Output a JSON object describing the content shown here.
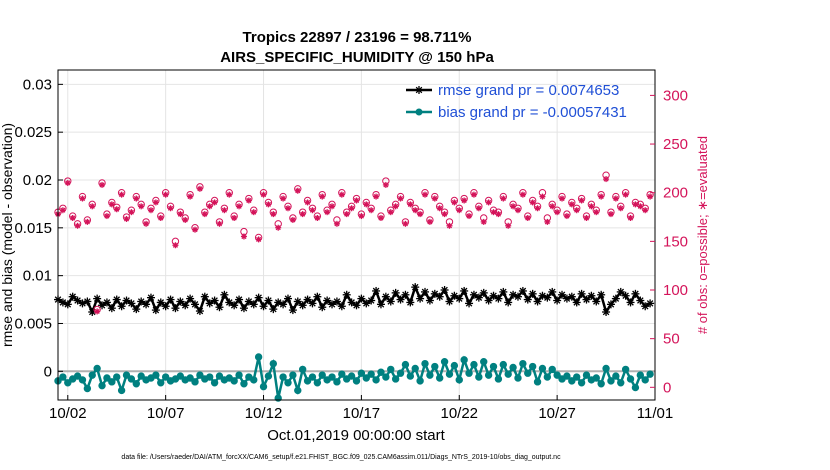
{
  "chart_data": {
    "type": "line",
    "title": "Tropics 22897 / 23196 = 98.711%",
    "subtitle": "AIRS_SPECIFIC_HUMIDITY @ 150 hPa",
    "xlabel": "Oct.01,2019 00:00:00 start",
    "ylabel": "rmse and bias (model - observation)",
    "y2label": "# of obs: o=possible; ∗=evaluated",
    "footer": "data file: /Users/raeder/DAI/ATM_forcXX/CAM6_setup/f.e21.FHIST_BGC.f09_025.CAM6assim.011/Diags_NTrS_2019-10/obs_diag_output.nc",
    "xlim": [
      1.5,
      32.0
    ],
    "ylim": [
      -0.003,
      0.0315
    ],
    "y2lim": [
      -13.04,
      326.1
    ],
    "x_ticks": [
      {
        "v": 2,
        "label": "10/02"
      },
      {
        "v": 7,
        "label": "10/07"
      },
      {
        "v": 12,
        "label": "10/12"
      },
      {
        "v": 17,
        "label": "10/17"
      },
      {
        "v": 22,
        "label": "10/22"
      },
      {
        "v": 27,
        "label": "10/27"
      },
      {
        "v": 32,
        "label": "11/01"
      }
    ],
    "y_ticks": [
      {
        "v": 0,
        "label": "0"
      },
      {
        "v": 0.005,
        "label": "0.005"
      },
      {
        "v": 0.01,
        "label": "0.01"
      },
      {
        "v": 0.015,
        "label": "0.015"
      },
      {
        "v": 0.02,
        "label": "0.02"
      },
      {
        "v": 0.025,
        "label": "0.025"
      },
      {
        "v": 0.03,
        "label": "0.03"
      }
    ],
    "y2_ticks": [
      {
        "v": 0,
        "label": "0"
      },
      {
        "v": 50,
        "label": "50"
      },
      {
        "v": 100,
        "label": "100"
      },
      {
        "v": 150,
        "label": "150"
      },
      {
        "v": 200,
        "label": "200"
      },
      {
        "v": 250,
        "label": "250"
      },
      {
        "v": 300,
        "label": "300"
      }
    ],
    "legend": {
      "position": "top-right"
    },
    "series": [
      {
        "name": "rmse grand pr = 0.0074653",
        "color": "#000000",
        "marker": "star",
        "x": [
          1.5,
          1.75,
          2.0,
          2.25,
          2.5,
          2.75,
          3.0,
          3.25,
          3.5,
          3.75,
          4.0,
          4.25,
          4.5,
          4.75,
          5.0,
          5.25,
          5.5,
          5.75,
          6.0,
          6.25,
          6.5,
          6.75,
          7.0,
          7.25,
          7.5,
          7.75,
          8.0,
          8.25,
          8.5,
          8.75,
          9.0,
          9.25,
          9.5,
          9.75,
          10.0,
          10.25,
          10.5,
          10.75,
          11.0,
          11.25,
          11.5,
          11.75,
          12.0,
          12.25,
          12.5,
          12.75,
          13.0,
          13.25,
          13.5,
          13.75,
          14.0,
          14.25,
          14.5,
          14.75,
          15.0,
          15.25,
          15.5,
          15.75,
          16.0,
          16.25,
          16.5,
          16.75,
          17.0,
          17.25,
          17.5,
          17.75,
          18.0,
          18.25,
          18.5,
          18.75,
          19.0,
          19.25,
          19.5,
          19.75,
          20.0,
          20.25,
          20.5,
          20.75,
          21.0,
          21.25,
          21.5,
          21.75,
          22.0,
          22.25,
          22.5,
          22.75,
          23.0,
          23.25,
          23.5,
          23.75,
          24.0,
          24.25,
          24.5,
          24.75,
          25.0,
          25.25,
          25.5,
          25.75,
          26.0,
          26.25,
          26.5,
          26.75,
          27.0,
          27.25,
          27.5,
          27.75,
          28.0,
          28.25,
          28.5,
          28.75,
          29.0,
          29.25,
          29.5,
          29.75,
          30.0,
          30.25,
          30.5,
          30.75,
          31.0,
          31.25,
          31.5,
          31.75
        ],
        "y": [
          0.0075,
          0.0072,
          0.007,
          0.0078,
          0.0074,
          0.0071,
          0.0073,
          0.0062,
          0.0076,
          0.0069,
          0.0072,
          0.0066,
          0.0075,
          0.0068,
          0.0074,
          0.0071,
          0.0065,
          0.0073,
          0.007,
          0.0077,
          0.0064,
          0.0072,
          0.0068,
          0.0075,
          0.0066,
          0.0073,
          0.0069,
          0.0076,
          0.007,
          0.0063,
          0.0078,
          0.0071,
          0.0074,
          0.0067,
          0.008,
          0.0072,
          0.0069,
          0.0075,
          0.0066,
          0.0073,
          0.007,
          0.0077,
          0.0068,
          0.0074,
          0.0065,
          0.0072,
          0.007,
          0.0076,
          0.0064,
          0.0073,
          0.0069,
          0.0075,
          0.0071,
          0.0078,
          0.0067,
          0.0074,
          0.007,
          0.0073,
          0.0068,
          0.008,
          0.0072,
          0.0069,
          0.0076,
          0.0071,
          0.0074,
          0.0084,
          0.007,
          0.0078,
          0.0073,
          0.0082,
          0.0075,
          0.008,
          0.0072,
          0.0088,
          0.0076,
          0.0083,
          0.0074,
          0.0081,
          0.0078,
          0.0085,
          0.0073,
          0.0079,
          0.0076,
          0.0084,
          0.0071,
          0.008,
          0.0077,
          0.0082,
          0.0074,
          0.0079,
          0.0076,
          0.0083,
          0.0072,
          0.008,
          0.0078,
          0.0084,
          0.0075,
          0.0081,
          0.0073,
          0.0079,
          0.0077,
          0.0083,
          0.0074,
          0.008,
          0.0076,
          0.0078,
          0.0072,
          0.0081,
          0.0075,
          0.0079,
          0.0073,
          0.008,
          0.0062,
          0.007,
          0.0076,
          0.0083,
          0.0079,
          0.0072,
          0.0081,
          0.0074,
          0.0068,
          0.0071
        ]
      },
      {
        "name": "bias grand pr = -0.00057431",
        "color": "#008080",
        "marker": "circle",
        "x": [
          1.5,
          1.75,
          2.0,
          2.25,
          2.5,
          2.75,
          3.0,
          3.25,
          3.5,
          3.75,
          4.0,
          4.25,
          4.5,
          4.75,
          5.0,
          5.25,
          5.5,
          5.75,
          6.0,
          6.25,
          6.5,
          6.75,
          7.0,
          7.25,
          7.5,
          7.75,
          8.0,
          8.25,
          8.5,
          8.75,
          9.0,
          9.25,
          9.5,
          9.75,
          10.0,
          10.25,
          10.5,
          10.75,
          11.0,
          11.25,
          11.5,
          11.75,
          12.0,
          12.25,
          12.5,
          12.75,
          13.0,
          13.25,
          13.5,
          13.75,
          14.0,
          14.25,
          14.5,
          14.75,
          15.0,
          15.25,
          15.5,
          15.75,
          16.0,
          16.25,
          16.5,
          16.75,
          17.0,
          17.25,
          17.5,
          17.75,
          18.0,
          18.25,
          18.5,
          18.75,
          19.0,
          19.25,
          19.5,
          19.75,
          20.0,
          20.25,
          20.5,
          20.75,
          21.0,
          21.25,
          21.5,
          21.75,
          22.0,
          22.25,
          22.5,
          22.75,
          23.0,
          23.25,
          23.5,
          23.75,
          24.0,
          24.25,
          24.5,
          24.75,
          25.0,
          25.25,
          25.5,
          25.75,
          26.0,
          26.25,
          26.5,
          26.75,
          27.0,
          27.25,
          27.5,
          27.75,
          28.0,
          28.25,
          28.5,
          28.75,
          29.0,
          29.25,
          29.5,
          29.75,
          30.0,
          30.25,
          30.5,
          30.75,
          31.0,
          31.25,
          31.5,
          31.75
        ],
        "y": [
          -0.001,
          -0.0006,
          -0.0012,
          -0.0008,
          -0.0005,
          -0.0009,
          -0.0018,
          -0.0004,
          0.0003,
          -0.0015,
          -0.0007,
          -0.0011,
          -0.0006,
          -0.002,
          -0.0004,
          -0.0008,
          -0.0013,
          -0.0005,
          -0.0009,
          -0.0007,
          -0.0004,
          -0.0012,
          -0.0006,
          -0.001,
          -0.0008,
          -0.0005,
          -0.0009,
          -0.0007,
          -0.0011,
          -0.0004,
          -0.0008,
          -0.0006,
          -0.0012,
          -0.0005,
          -0.0009,
          -0.0007,
          -0.001,
          -0.0004,
          -0.0013,
          -0.0006,
          -0.0009,
          0.0015,
          -0.0016,
          -0.0005,
          0.0008,
          -0.0028,
          -0.0006,
          -0.0012,
          -0.0004,
          -0.002,
          0.0002,
          -0.001,
          -0.0006,
          -0.0012,
          -0.0004,
          -0.0009,
          -0.0006,
          -0.0011,
          -0.0003,
          -0.0008,
          -0.0005,
          -0.001,
          -0.0002,
          -0.0007,
          -0.0003,
          -0.0009,
          -0.0001,
          -0.0006,
          0.0002,
          -0.0008,
          -0.0002,
          0.0007,
          -0.0005,
          0.0003,
          -0.001,
          0.0008,
          -0.0004,
          0.0005,
          -0.0007,
          0.001,
          -0.0003,
          0.0006,
          -0.0009,
          0.0012,
          -0.0002,
          0.0007,
          -0.0006,
          0.001,
          -0.0004,
          0.0005,
          -0.0008,
          0.0007,
          -0.0003,
          0.0004,
          -0.0007,
          0.0008,
          -0.0002,
          0.0005,
          -0.0011,
          0.0003,
          -0.0006,
          0.0002,
          -0.0004,
          -0.0008,
          -0.0005,
          -0.001,
          -0.0006,
          -0.0012,
          -0.0004,
          -0.0009,
          -0.0007,
          -0.0013,
          0.0003,
          -0.001,
          -0.0005,
          -0.0012,
          0.0002,
          -0.0008,
          -0.0017,
          -0.0004,
          -0.0009,
          -0.0003
        ]
      },
      {
        "name": "possible",
        "color": "#d4145a",
        "marker": "circle-open",
        "axis": "right",
        "x": [
          1.5,
          1.75,
          2.0,
          2.25,
          2.5,
          2.75,
          3.0,
          3.25,
          3.5,
          3.75,
          4.0,
          4.25,
          4.5,
          4.75,
          5.0,
          5.25,
          5.5,
          5.75,
          6.0,
          6.25,
          6.5,
          6.75,
          7.0,
          7.25,
          7.5,
          7.75,
          8.0,
          8.25,
          8.5,
          8.75,
          9.0,
          9.25,
          9.5,
          9.75,
          10.0,
          10.25,
          10.5,
          10.75,
          11.0,
          11.25,
          11.5,
          11.75,
          12.0,
          12.25,
          12.5,
          12.75,
          13.0,
          13.25,
          13.5,
          13.75,
          14.0,
          14.25,
          14.5,
          14.75,
          15.0,
          15.25,
          15.5,
          15.75,
          16.0,
          16.25,
          16.5,
          16.75,
          17.0,
          17.25,
          17.5,
          17.75,
          18.0,
          18.25,
          18.5,
          18.75,
          19.0,
          19.25,
          19.5,
          19.75,
          20.0,
          20.25,
          20.5,
          20.75,
          21.0,
          21.25,
          21.5,
          21.75,
          22.0,
          22.25,
          22.5,
          22.75,
          23.0,
          23.25,
          23.5,
          23.75,
          24.0,
          24.25,
          24.5,
          24.75,
          25.0,
          25.25,
          25.5,
          25.75,
          26.0,
          26.25,
          26.5,
          26.75,
          27.0,
          27.25,
          27.5,
          27.75,
          28.0,
          28.25,
          28.5,
          28.75,
          29.0,
          29.25,
          29.5,
          29.75,
          30.0,
          30.25,
          30.5,
          30.75,
          31.0,
          31.25,
          31.5,
          31.75
        ],
        "y": [
          180,
          184,
          212,
          176,
          168,
          196,
          172,
          188,
          80,
          210,
          178,
          190,
          185,
          200,
          175,
          182,
          196,
          188,
          170,
          184,
          192,
          176,
          200,
          186,
          150,
          180,
          174,
          198,
          164,
          206,
          180,
          188,
          192,
          170,
          184,
          200,
          176,
          188,
          160,
          194,
          182,
          154,
          200,
          190,
          180,
          168,
          196,
          186,
          174,
          204,
          180,
          192,
          184,
          176,
          198,
          182,
          188,
          172,
          200,
          180,
          186,
          194,
          178,
          190,
          184,
          198,
          176,
          212,
          182,
          188,
          196,
          170,
          190,
          184,
          180,
          200,
          172,
          196,
          186,
          180,
          170,
          192,
          184,
          194,
          178,
          200,
          186,
          174,
          192,
          182,
          180,
          196,
          170,
          188,
          184,
          200,
          176,
          192,
          186,
          200,
          174,
          188,
          182,
          196,
          178,
          190,
          184,
          194,
          176,
          188,
          182,
          198,
          218,
          180,
          196,
          186,
          200,
          176,
          190,
          188,
          184,
          198
        ]
      },
      {
        "name": "evaluated",
        "color": "#d4145a",
        "marker": "asterisk",
        "axis": "right",
        "x": [
          1.5,
          1.75,
          2.0,
          2.25,
          2.5,
          2.75,
          3.0,
          3.25,
          3.5,
          3.75,
          4.0,
          4.25,
          4.5,
          4.75,
          5.0,
          5.25,
          5.5,
          5.75,
          6.0,
          6.25,
          6.5,
          6.75,
          7.0,
          7.25,
          7.5,
          7.75,
          8.0,
          8.25,
          8.5,
          8.75,
          9.0,
          9.25,
          9.5,
          9.75,
          10.0,
          10.25,
          10.5,
          10.75,
          11.0,
          11.25,
          11.5,
          11.75,
          12.0,
          12.25,
          12.5,
          12.75,
          13.0,
          13.25,
          13.5,
          13.75,
          14.0,
          14.25,
          14.5,
          14.75,
          15.0,
          15.25,
          15.5,
          15.75,
          16.0,
          16.25,
          16.5,
          16.75,
          17.0,
          17.25,
          17.5,
          17.75,
          18.0,
          18.25,
          18.5,
          18.75,
          19.0,
          19.25,
          19.5,
          19.75,
          20.0,
          20.25,
          20.5,
          20.75,
          21.0,
          21.25,
          21.5,
          21.75,
          22.0,
          22.25,
          22.5,
          22.75,
          23.0,
          23.25,
          23.5,
          23.75,
          24.0,
          24.25,
          24.5,
          24.75,
          25.0,
          25.25,
          25.5,
          25.75,
          26.0,
          26.25,
          26.5,
          26.75,
          27.0,
          27.25,
          27.5,
          27.75,
          28.0,
          28.25,
          28.5,
          28.75,
          29.0,
          29.25,
          29.5,
          29.75,
          30.0,
          30.25,
          30.5,
          30.75,
          31.0,
          31.25,
          31.5,
          31.75
        ],
        "y": [
          178,
          182,
          210,
          174,
          166,
          194,
          170,
          186,
          78,
          208,
          176,
          188,
          183,
          198,
          173,
          180,
          194,
          186,
          168,
          182,
          190,
          174,
          198,
          184,
          146,
          178,
          172,
          196,
          162,
          204,
          178,
          186,
          190,
          168,
          182,
          198,
          174,
          186,
          155,
          192,
          180,
          152,
          198,
          188,
          178,
          164,
          194,
          184,
          172,
          202,
          178,
          190,
          182,
          174,
          196,
          180,
          186,
          168,
          198,
          178,
          184,
          192,
          176,
          188,
          182,
          196,
          174,
          208,
          180,
          186,
          194,
          168,
          188,
          182,
          178,
          198,
          170,
          194,
          184,
          178,
          166,
          190,
          182,
          192,
          176,
          198,
          184,
          170,
          190,
          180,
          178,
          194,
          166,
          186,
          182,
          198,
          174,
          190,
          184,
          196,
          170,
          186,
          180,
          194,
          176,
          188,
          182,
          192,
          174,
          186,
          180,
          196,
          214,
          178,
          194,
          184,
          198,
          174,
          188,
          186,
          182,
          196
        ]
      }
    ]
  }
}
